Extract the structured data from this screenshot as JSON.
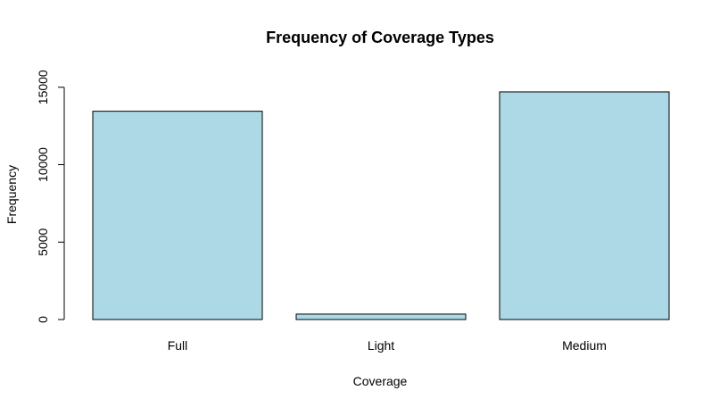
{
  "chart_data": {
    "type": "bar",
    "title": "Frequency of Coverage Types",
    "xlabel": "Coverage",
    "ylabel": "Frequency",
    "categories": [
      "Full",
      "Light",
      "Medium"
    ],
    "values": [
      13450,
      350,
      14700
    ],
    "ylim": [
      0,
      15000
    ],
    "yticks": [
      0,
      5000,
      10000,
      15000
    ],
    "bar_color": "#add8e6",
    "bar_edge_color": "#000000",
    "grid": false,
    "legend": "none"
  }
}
